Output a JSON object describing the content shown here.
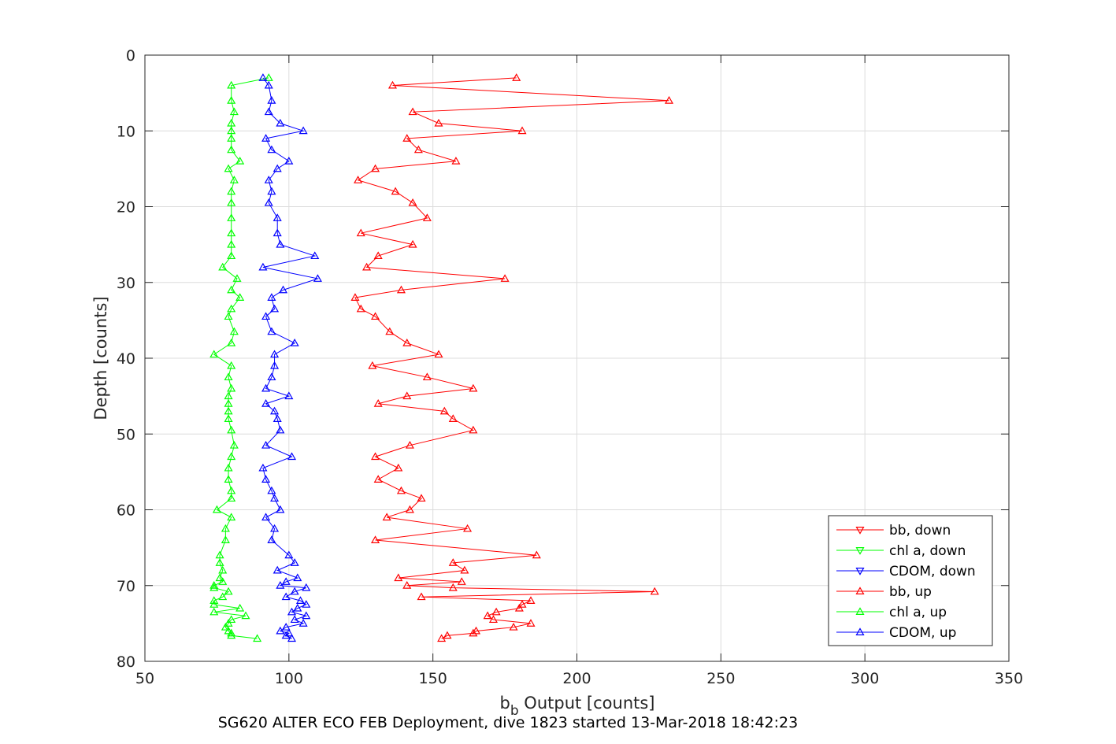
{
  "chart_data": {
    "type": "line",
    "title": "SG620 ALTER ECO FEB Deployment, dive 1823 started 13-Mar-2018 18:42:23",
    "xlabel_main": "b",
    "xlabel_sub": "b",
    "xlabel_rest": " Output [counts]",
    "ylabel": "Depth [counts]",
    "xlim": [
      50,
      350
    ],
    "ylim": [
      0,
      80
    ],
    "y_reversed": true,
    "grid": true,
    "legend_position": "bottom-right",
    "xticks": [
      "50",
      "100",
      "150",
      "200",
      "250",
      "300",
      "350"
    ],
    "yticks": [
      "0",
      "10",
      "20",
      "30",
      "40",
      "50",
      "60",
      "70",
      "80"
    ],
    "colors": {
      "bb": "#ff0000",
      "chl": "#00ff00",
      "cdom": "#0000ff"
    },
    "series": [
      {
        "name": "bb, down",
        "color": "#ff0000",
        "marker": "triangle-down",
        "x": [],
        "y": []
      },
      {
        "name": "chl a, down",
        "color": "#00ff00",
        "marker": "triangle-down",
        "x": [],
        "y": []
      },
      {
        "name": "CDOM, down",
        "color": "#0000ff",
        "marker": "triangle-down",
        "x": [],
        "y": []
      },
      {
        "name": "bb, up",
        "color": "#ff0000",
        "marker": "triangle-up",
        "y": [
          3,
          4,
          6,
          7.5,
          9,
          10,
          11,
          12.5,
          14,
          15,
          16.5,
          18,
          19.5,
          21.5,
          23.5,
          25,
          26.5,
          28,
          29.5,
          31,
          32,
          33.5,
          34.5,
          36.5,
          38,
          39.5,
          41,
          42.5,
          44,
          45,
          46,
          47,
          48,
          49.5,
          51.5,
          53,
          54.5,
          56,
          57.5,
          58.5,
          60,
          61,
          62.5,
          64,
          66,
          67,
          68,
          69,
          69.5,
          70,
          70.3,
          70.8,
          71.5,
          72,
          72.5,
          73,
          73.5,
          74,
          74.5,
          75,
          75.5,
          76,
          76.3,
          76.6,
          77
        ],
        "x": [
          179,
          136,
          232,
          143,
          152,
          181,
          141,
          145,
          158,
          130,
          124,
          137,
          143,
          148,
          125,
          143,
          131,
          127,
          175,
          139,
          123,
          125,
          130,
          135,
          141,
          152,
          129,
          148,
          164,
          141,
          131,
          154,
          157,
          164,
          142,
          130,
          138,
          131,
          139,
          146,
          142,
          134,
          162,
          130,
          186,
          157,
          161,
          138,
          160,
          141,
          157,
          227,
          146,
          184,
          181,
          180,
          172,
          169,
          171,
          184,
          178,
          165,
          164,
          155,
          153
        ]
      },
      {
        "name": "chl a, up",
        "color": "#00ff00",
        "marker": "triangle-up",
        "y": [
          3,
          4,
          6,
          7.5,
          9,
          10,
          11,
          12.5,
          14,
          15,
          16.5,
          18,
          19.5,
          21.5,
          23.5,
          25,
          26.5,
          28,
          29.5,
          31,
          32,
          33.5,
          34.5,
          36.5,
          38,
          39.5,
          41,
          42.5,
          44,
          45,
          46,
          47,
          48,
          49.5,
          51.5,
          53,
          54.5,
          56,
          57.5,
          58.5,
          60,
          61,
          62.5,
          64,
          66,
          67,
          68,
          69,
          69.5,
          70,
          70.3,
          70.8,
          71.5,
          72,
          72.5,
          73,
          73.5,
          74,
          74.5,
          75,
          75.5,
          76,
          76.3,
          76.6,
          77
        ],
        "x": [
          93,
          80,
          80,
          81,
          80,
          80,
          80,
          80,
          83,
          79,
          81,
          80,
          80,
          80,
          80,
          80,
          80,
          77,
          82,
          80,
          83,
          80,
          79,
          81,
          80,
          74,
          80,
          79,
          80,
          79,
          79,
          79,
          79,
          80,
          81,
          80,
          79,
          79,
          80,
          80,
          75,
          80,
          78,
          78,
          76,
          76,
          77,
          76,
          77,
          74,
          74,
          79,
          77,
          74,
          74,
          83,
          74,
          85,
          80,
          79,
          78,
          79,
          80,
          80,
          89
        ]
      },
      {
        "name": "CDOM, up",
        "color": "#0000ff",
        "marker": "triangle-up",
        "y": [
          3,
          4,
          6,
          7.5,
          9,
          10,
          11,
          12.5,
          14,
          15,
          16.5,
          18,
          19.5,
          21.5,
          23.5,
          25,
          26.5,
          28,
          29.5,
          31,
          32,
          33.5,
          34.5,
          36.5,
          38,
          39.5,
          41,
          42.5,
          44,
          45,
          46,
          47,
          48,
          49.5,
          51.5,
          53,
          54.5,
          56,
          57.5,
          58.5,
          60,
          61,
          62.5,
          64,
          66,
          67,
          68,
          69,
          69.5,
          70,
          70.3,
          70.8,
          71.5,
          72,
          72.5,
          73,
          73.5,
          74,
          74.5,
          75,
          75.5,
          76,
          76.3,
          76.6,
          77
        ],
        "x": [
          91,
          93,
          94,
          93,
          97,
          105,
          92,
          94,
          100,
          96,
          93,
          94,
          93,
          96,
          96,
          97,
          109,
          91,
          110,
          98,
          94,
          95,
          92,
          94,
          102,
          95,
          95,
          94,
          92,
          100,
          92,
          95,
          96,
          97,
          92,
          101,
          91,
          92,
          94,
          95,
          97,
          92,
          95,
          94,
          100,
          102,
          96,
          103,
          99,
          97,
          106,
          102,
          99,
          104,
          106,
          103,
          101,
          106,
          102,
          105,
          99,
          97,
          100,
          99,
          101
        ]
      }
    ]
  }
}
